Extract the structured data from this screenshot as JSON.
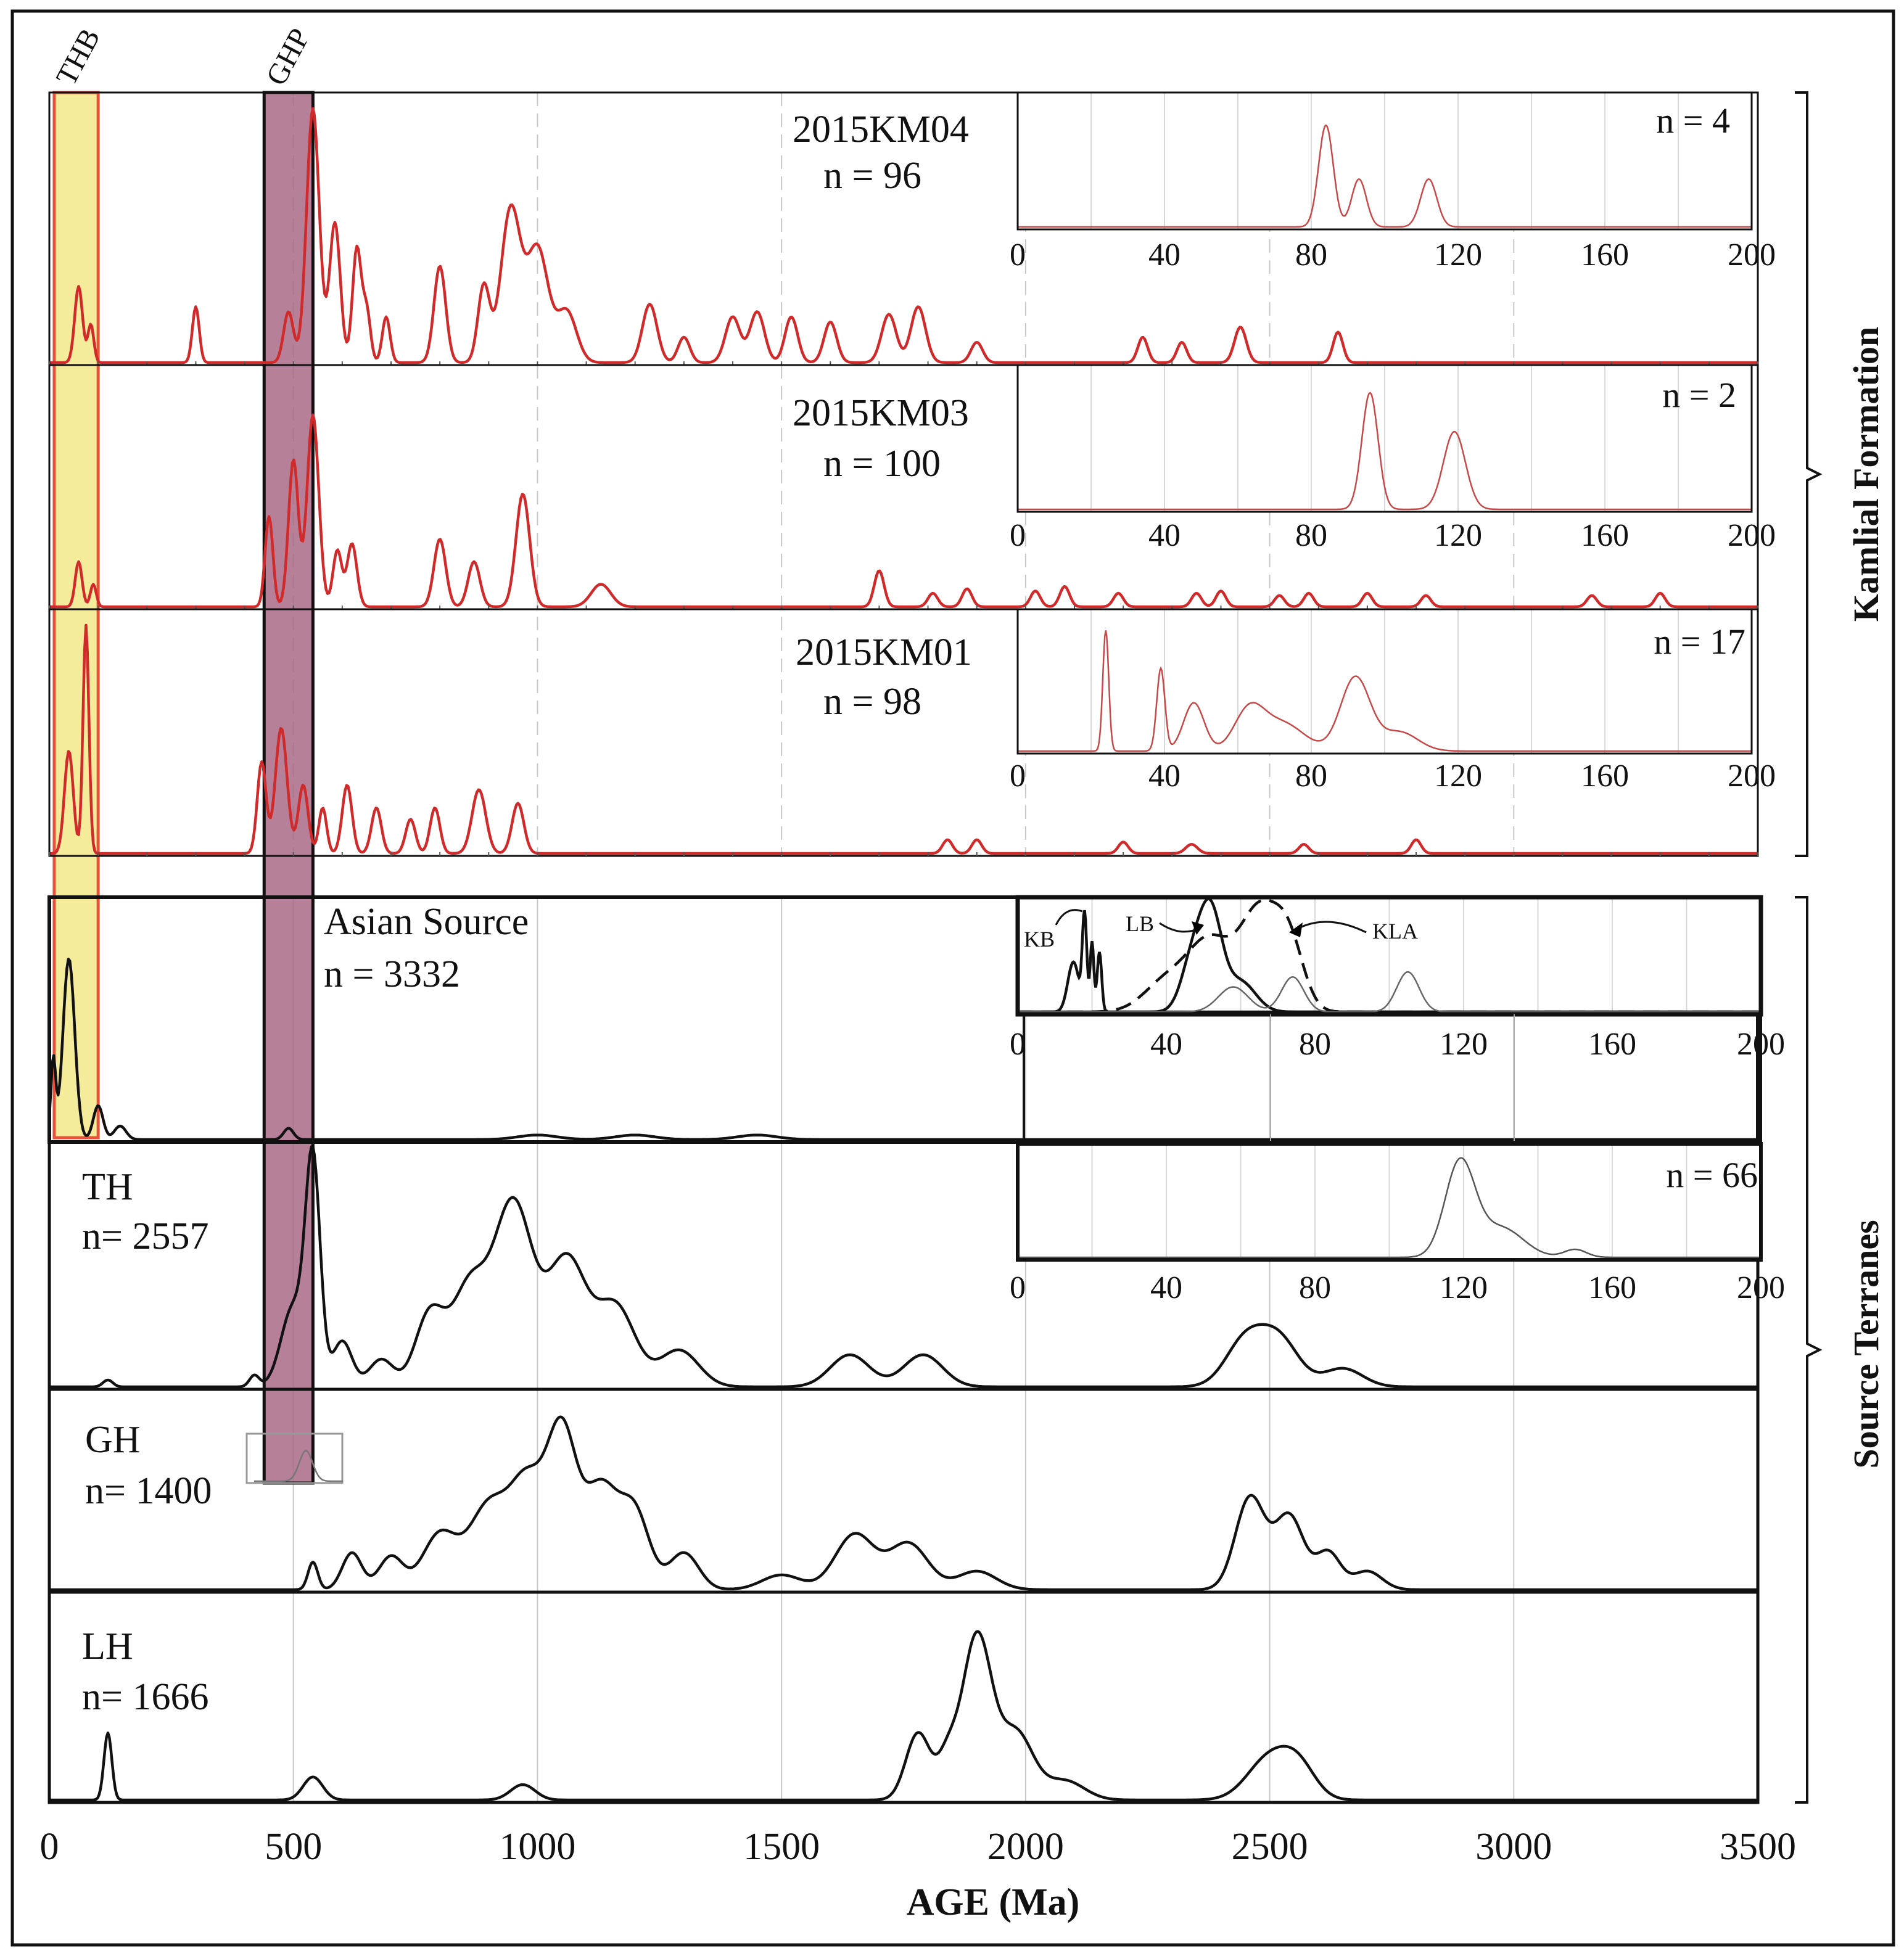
{
  "chart_data": {
    "type": "line",
    "title": "",
    "xlabel": "AGE (Ma)",
    "xlim": [
      0,
      3500
    ],
    "xticks": [
      "0",
      "500",
      "1000",
      "1500",
      "2000",
      "2500",
      "3000",
      "3500"
    ],
    "ylabel": "",
    "grid": true,
    "highlight_bands": [
      {
        "label": "THB",
        "range": [
          10,
          100
        ],
        "color": "#f3e98a"
      },
      {
        "label": "GHP",
        "range": [
          440,
          540
        ],
        "color": "#a86a86"
      }
    ],
    "groups": [
      {
        "label": "Kamlial Formation",
        "panels": [
          "2015KM04",
          "2015KM03",
          "2015KM01"
        ]
      },
      {
        "label": "Source Terranes",
        "panels": [
          "Asian Source",
          "TH",
          "GH",
          "LH"
        ]
      }
    ],
    "series": [
      {
        "name": "2015KM04",
        "n_label": "n = 96",
        "color": "#d02a2a",
        "peaks": [
          [
            60,
            0.3,
            8
          ],
          [
            85,
            0.15,
            6
          ],
          [
            300,
            0.22,
            7
          ],
          [
            490,
            0.2,
            10
          ],
          [
            540,
            1.0,
            13
          ],
          [
            585,
            0.55,
            11
          ],
          [
            630,
            0.45,
            9
          ],
          [
            650,
            0.2,
            8
          ],
          [
            690,
            0.18,
            8
          ],
          [
            800,
            0.38,
            12
          ],
          [
            890,
            0.3,
            12
          ],
          [
            945,
            0.6,
            20
          ],
          [
            1000,
            0.45,
            22
          ],
          [
            1060,
            0.2,
            20
          ],
          [
            1230,
            0.23,
            15
          ],
          [
            1300,
            0.1,
            12
          ],
          [
            1400,
            0.18,
            15
          ],
          [
            1450,
            0.2,
            15
          ],
          [
            1520,
            0.18,
            13
          ],
          [
            1600,
            0.16,
            13
          ],
          [
            1720,
            0.19,
            15
          ],
          [
            1780,
            0.22,
            15
          ],
          [
            1900,
            0.08,
            12
          ],
          [
            2240,
            0.1,
            10
          ],
          [
            2320,
            0.08,
            10
          ],
          [
            2440,
            0.14,
            12
          ],
          [
            2640,
            0.12,
            10
          ]
        ]
      },
      {
        "name": "2015KM03",
        "n_label": "n = 100",
        "color": "#d02a2a",
        "peaks": [
          [
            60,
            0.2,
            7
          ],
          [
            90,
            0.1,
            6
          ],
          [
            450,
            0.4,
            8
          ],
          [
            500,
            0.65,
            10
          ],
          [
            540,
            0.85,
            12
          ],
          [
            590,
            0.25,
            9
          ],
          [
            620,
            0.28,
            10
          ],
          [
            800,
            0.3,
            12
          ],
          [
            870,
            0.2,
            12
          ],
          [
            970,
            0.5,
            14
          ],
          [
            1130,
            0.1,
            20
          ],
          [
            1700,
            0.16,
            10
          ],
          [
            1810,
            0.06,
            10
          ],
          [
            1880,
            0.08,
            10
          ],
          [
            2020,
            0.07,
            10
          ],
          [
            2080,
            0.09,
            10
          ],
          [
            2190,
            0.06,
            10
          ],
          [
            2350,
            0.06,
            10
          ],
          [
            2400,
            0.07,
            10
          ],
          [
            2520,
            0.05,
            10
          ],
          [
            2580,
            0.06,
            10
          ],
          [
            2700,
            0.06,
            10
          ],
          [
            2820,
            0.05,
            10
          ],
          [
            3160,
            0.05,
            10
          ],
          [
            3300,
            0.06,
            10
          ]
        ]
      },
      {
        "name": "2015KM01",
        "n_label": "n = 98",
        "color": "#d02a2a",
        "peaks": [
          [
            40,
            0.45,
            9
          ],
          [
            75,
            1.0,
            6
          ],
          [
            435,
            0.4,
            9
          ],
          [
            475,
            0.55,
            12
          ],
          [
            520,
            0.3,
            10
          ],
          [
            560,
            0.2,
            8
          ],
          [
            610,
            0.3,
            10
          ],
          [
            670,
            0.2,
            10
          ],
          [
            740,
            0.15,
            10
          ],
          [
            790,
            0.2,
            10
          ],
          [
            880,
            0.28,
            14
          ],
          [
            960,
            0.22,
            12
          ],
          [
            1840,
            0.06,
            10
          ],
          [
            1900,
            0.06,
            10
          ],
          [
            2200,
            0.05,
            10
          ],
          [
            2340,
            0.04,
            12
          ],
          [
            2570,
            0.04,
            10
          ],
          [
            2800,
            0.06,
            10
          ]
        ]
      },
      {
        "name": "Asian Source",
        "n_label": "n = 3332",
        "color": "#111111",
        "peaks": [
          [
            8,
            0.35,
            5
          ],
          [
            40,
            0.8,
            12
          ],
          [
            100,
            0.15,
            10
          ],
          [
            145,
            0.06,
            12
          ],
          [
            490,
            0.05,
            10
          ],
          [
            1000,
            0.02,
            40
          ],
          [
            1200,
            0.02,
            40
          ],
          [
            1450,
            0.02,
            40
          ]
        ]
      },
      {
        "name": "TH",
        "n_label": "n= 2557",
        "color": "#111111",
        "peaks": [
          [
            120,
            0.03,
            10
          ],
          [
            420,
            0.05,
            10
          ],
          [
            500,
            0.35,
            25
          ],
          [
            540,
            0.95,
            15
          ],
          [
            600,
            0.2,
            20
          ],
          [
            680,
            0.12,
            25
          ],
          [
            780,
            0.32,
            30
          ],
          [
            860,
            0.42,
            35
          ],
          [
            950,
            0.8,
            40
          ],
          [
            1060,
            0.55,
            40
          ],
          [
            1160,
            0.35,
            40
          ],
          [
            1290,
            0.16,
            40
          ],
          [
            1640,
            0.14,
            40
          ],
          [
            1790,
            0.14,
            40
          ],
          [
            2450,
            0.2,
            40
          ],
          [
            2520,
            0.2,
            40
          ],
          [
            2650,
            0.08,
            40
          ]
        ]
      },
      {
        "name": "GH",
        "n_label": "n= 1400",
        "color": "#111111",
        "peaks": [
          [
            540,
            0.15,
            10
          ],
          [
            620,
            0.2,
            20
          ],
          [
            700,
            0.18,
            25
          ],
          [
            800,
            0.3,
            35
          ],
          [
            900,
            0.45,
            40
          ],
          [
            980,
            0.55,
            35
          ],
          [
            1050,
            0.82,
            30
          ],
          [
            1130,
            0.55,
            35
          ],
          [
            1200,
            0.4,
            30
          ],
          [
            1300,
            0.2,
            30
          ],
          [
            1500,
            0.08,
            40
          ],
          [
            1650,
            0.3,
            40
          ],
          [
            1760,
            0.25,
            40
          ],
          [
            1900,
            0.1,
            40
          ],
          [
            2460,
            0.5,
            30
          ],
          [
            2540,
            0.4,
            30
          ],
          [
            2620,
            0.2,
            25
          ],
          [
            2700,
            0.1,
            30
          ]
        ]
      },
      {
        "name": "LH",
        "n_label": "n= 1666",
        "color": "#111111",
        "peaks": [
          [
            120,
            0.35,
            8
          ],
          [
            540,
            0.12,
            20
          ],
          [
            970,
            0.08,
            25
          ],
          [
            1780,
            0.35,
            25
          ],
          [
            1840,
            0.2,
            20
          ],
          [
            1900,
            0.85,
            30
          ],
          [
            1980,
            0.35,
            35
          ],
          [
            2080,
            0.1,
            40
          ],
          [
            2500,
            0.22,
            45
          ],
          [
            2560,
            0.15,
            35
          ]
        ]
      }
    ],
    "insets": [
      {
        "panel": "2015KM04",
        "n_label": "n = 4",
        "xlim": [
          0,
          200
        ],
        "xticks": [
          "0",
          "40",
          "80",
          "120",
          "160",
          "200"
        ],
        "peaks": [
          [
            84,
            0.85,
            2
          ],
          [
            93,
            0.4,
            2
          ],
          [
            112,
            0.4,
            2.2
          ]
        ]
      },
      {
        "panel": "2015KM03",
        "n_label": "n = 2",
        "xlim": [
          0,
          200
        ],
        "xticks": [
          "0",
          "40",
          "80",
          "120",
          "160",
          "200"
        ],
        "peaks": [
          [
            96,
            0.9,
            2.2
          ],
          [
            119,
            0.6,
            3
          ]
        ]
      },
      {
        "panel": "2015KM01",
        "n_label": "n = 17",
        "xlim": [
          0,
          200
        ],
        "xticks": [
          "0",
          "40",
          "80",
          "120",
          "160",
          "200"
        ],
        "peaks": [
          [
            24,
            0.95,
            0.8
          ],
          [
            39,
            0.65,
            1.1
          ],
          [
            48,
            0.38,
            2.8
          ],
          [
            63,
            0.3,
            4
          ],
          [
            72,
            0.22,
            6
          ],
          [
            92,
            0.58,
            4
          ],
          [
            104,
            0.15,
            5
          ]
        ]
      },
      {
        "panel": "Asian Source",
        "n_label": "",
        "xlim": [
          0,
          200
        ],
        "xticks": [
          "0",
          "40",
          "80",
          "120",
          "160",
          "200"
        ],
        "curve_labels": [
          "KB",
          "LB",
          "KLA"
        ],
        "curves": [
          {
            "name": "KB",
            "style": "solid",
            "peaks": [
              [
                15,
                0.5,
                1.5
              ],
              [
                18,
                0.95,
                0.6
              ],
              [
                20,
                0.7,
                0.5
              ],
              [
                22,
                0.6,
                0.6
              ]
            ]
          },
          {
            "name": "LB",
            "style": "solid",
            "peaks": [
              [
                47,
                0.5,
                3
              ],
              [
                52,
                0.95,
                3
              ],
              [
                60,
                0.3,
                4
              ]
            ]
          },
          {
            "name": "KLA",
            "style": "dashed",
            "peaks": [
              [
                40,
                0.3,
                6
              ],
              [
                52,
                0.7,
                6
              ],
              [
                65,
                0.95,
                5
              ],
              [
                73,
                0.65,
                4
              ]
            ]
          },
          {
            "name": "",
            "style": "thin",
            "peaks": [
              [
                58,
                0.25,
                4
              ],
              [
                74,
                0.35,
                3
              ],
              [
                105,
                0.4,
                3
              ]
            ]
          }
        ]
      },
      {
        "panel": "TH",
        "n_label": "n = 66",
        "xlim": [
          0,
          200
        ],
        "xticks": [
          "0",
          "40",
          "80",
          "120",
          "160",
          "200"
        ],
        "peaks": [
          [
            119,
            0.95,
            4
          ],
          [
            130,
            0.3,
            6
          ],
          [
            150,
            0.08,
            3
          ]
        ]
      }
    ]
  }
}
